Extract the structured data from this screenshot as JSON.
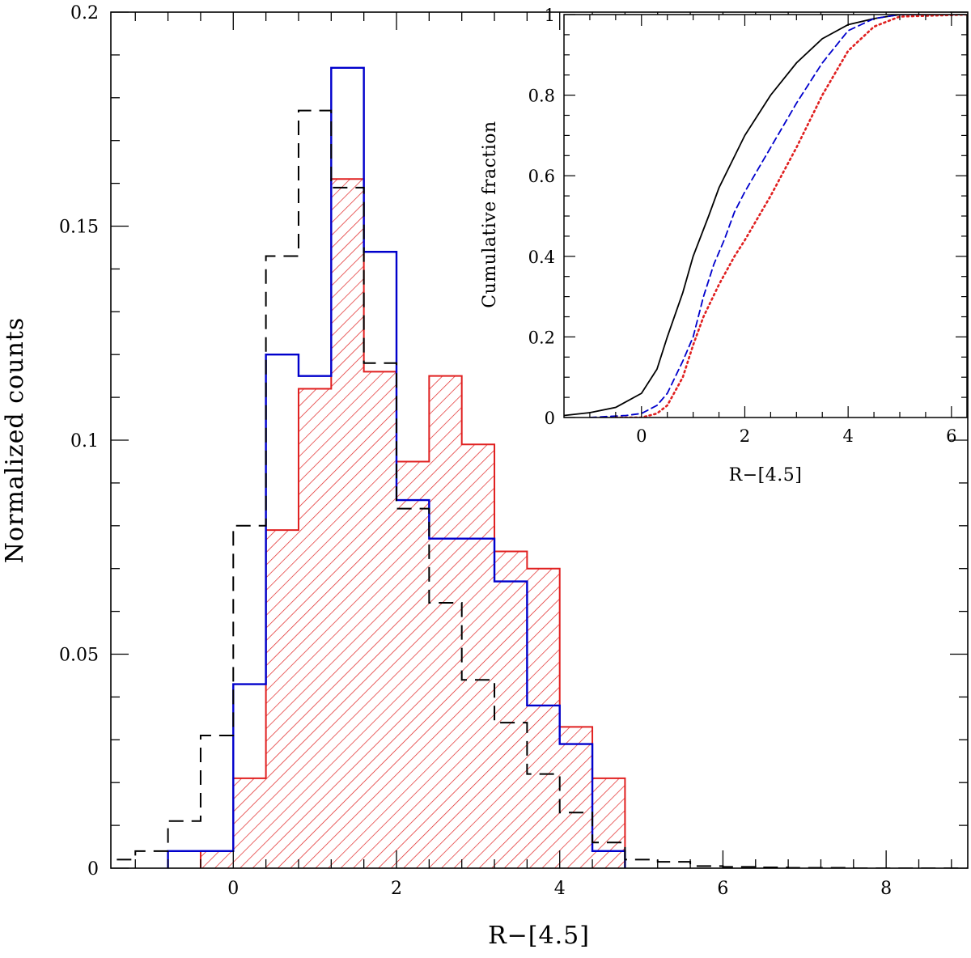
{
  "chart_data": [
    {
      "name": "main-histogram",
      "type": "bar",
      "xlabel": "R−[4.5]",
      "ylabel": "Normalized counts",
      "xlim": [
        -1.5,
        9
      ],
      "ylim": [
        0,
        0.2
      ],
      "xticks": [
        0,
        2,
        4,
        6,
        8
      ],
      "xtick_labels": [
        "0",
        "2",
        "4",
        "6",
        "8"
      ],
      "yticks": [
        0,
        0.05,
        0.1,
        0.15,
        0.2
      ],
      "ytick_labels": [
        "0",
        "0.05",
        "0.1",
        "0.15",
        "0.2"
      ],
      "bin_width": 0.4,
      "series": [
        {
          "name": "black dashed",
          "style": "dashed",
          "color": "#000000",
          "bin_starts": [
            -1.6,
            -1.2,
            -0.8,
            -0.4,
            0.0,
            0.4,
            0.8,
            1.2,
            1.6,
            2.0,
            2.4,
            2.8,
            3.2,
            3.6,
            4.0,
            4.4,
            4.8,
            5.2,
            5.6,
            6.0,
            6.4,
            6.8,
            7.2,
            7.6,
            8.0,
            8.4,
            8.8
          ],
          "values": [
            0.002,
            0.004,
            0.011,
            0.031,
            0.08,
            0.143,
            0.177,
            0.159,
            0.118,
            0.084,
            0.062,
            0.044,
            0.034,
            0.022,
            0.013,
            0.006,
            0.002,
            0.0015,
            0.0005,
            0.0003,
            0.0002,
            0.0001,
            0.0001,
            0.0,
            0.0,
            0.0,
            0.0
          ]
        },
        {
          "name": "blue solid",
          "style": "solid",
          "color": "#0000cc",
          "bin_starts": [
            -0.8,
            -0.4,
            0.0,
            0.4,
            0.8,
            1.2,
            1.6,
            2.0,
            2.4,
            2.8,
            3.2,
            3.6,
            4.0,
            4.4
          ],
          "values": [
            0.004,
            0.004,
            0.043,
            0.12,
            0.115,
            0.187,
            0.144,
            0.086,
            0.077,
            0.077,
            0.067,
            0.038,
            0.029,
            0.004
          ]
        },
        {
          "name": "red hatched",
          "style": "hatched",
          "color": "#e02020",
          "bin_starts": [
            -0.4,
            0.0,
            0.4,
            0.8,
            1.2,
            1.6,
            2.0,
            2.4,
            2.8,
            3.2,
            3.6,
            4.0,
            4.4
          ],
          "values": [
            0.004,
            0.021,
            0.079,
            0.112,
            0.161,
            0.116,
            0.095,
            0.115,
            0.099,
            0.074,
            0.07,
            0.033,
            0.021
          ]
        }
      ]
    },
    {
      "name": "inset-cumulative",
      "type": "line",
      "xlabel": "R−[4.5]",
      "ylabel": "Cumulative fraction",
      "xlim": [
        -1.5,
        6.3
      ],
      "ylim": [
        0,
        1
      ],
      "xticks": [
        0,
        2,
        4,
        6
      ],
      "xtick_labels": [
        "0",
        "2",
        "4",
        "6"
      ],
      "yticks": [
        0,
        0.2,
        0.4,
        0.6,
        0.8,
        1
      ],
      "ytick_labels": [
        "0",
        "0.2",
        "0.4",
        "0.6",
        "0.8",
        "1"
      ],
      "series": [
        {
          "name": "black solid",
          "style": "solid",
          "color": "#000000",
          "x": [
            -1.5,
            -1.0,
            -0.5,
            0.0,
            0.3,
            0.5,
            0.8,
            1.0,
            1.3,
            1.5,
            2.0,
            2.5,
            3.0,
            3.5,
            4.0,
            4.5,
            5.0,
            6.3
          ],
          "y": [
            0.005,
            0.012,
            0.025,
            0.06,
            0.12,
            0.2,
            0.31,
            0.4,
            0.5,
            0.57,
            0.7,
            0.8,
            0.88,
            0.94,
            0.975,
            0.99,
            1.0,
            1.0
          ]
        },
        {
          "name": "blue dashed",
          "style": "dashed",
          "color": "#0000cc",
          "x": [
            -1.0,
            -0.3,
            0.0,
            0.3,
            0.5,
            0.8,
            1.0,
            1.2,
            1.4,
            1.6,
            1.8,
            2.0,
            2.5,
            3.0,
            3.5,
            4.0,
            4.5,
            5.0,
            6.3
          ],
          "y": [
            0.0,
            0.005,
            0.01,
            0.03,
            0.06,
            0.14,
            0.2,
            0.3,
            0.38,
            0.44,
            0.51,
            0.56,
            0.67,
            0.78,
            0.88,
            0.96,
            0.99,
            1.0,
            1.0
          ]
        },
        {
          "name": "red dotted",
          "style": "dotted",
          "color": "#e02020",
          "x": [
            -0.5,
            0.0,
            0.3,
            0.5,
            0.8,
            1.0,
            1.2,
            1.5,
            1.8,
            2.0,
            2.5,
            3.0,
            3.5,
            4.0,
            4.5,
            5.0,
            6.3
          ],
          "y": [
            0.0,
            0.0,
            0.01,
            0.03,
            0.1,
            0.18,
            0.25,
            0.33,
            0.4,
            0.44,
            0.55,
            0.67,
            0.8,
            0.91,
            0.97,
            0.995,
            1.0
          ]
        }
      ]
    }
  ]
}
